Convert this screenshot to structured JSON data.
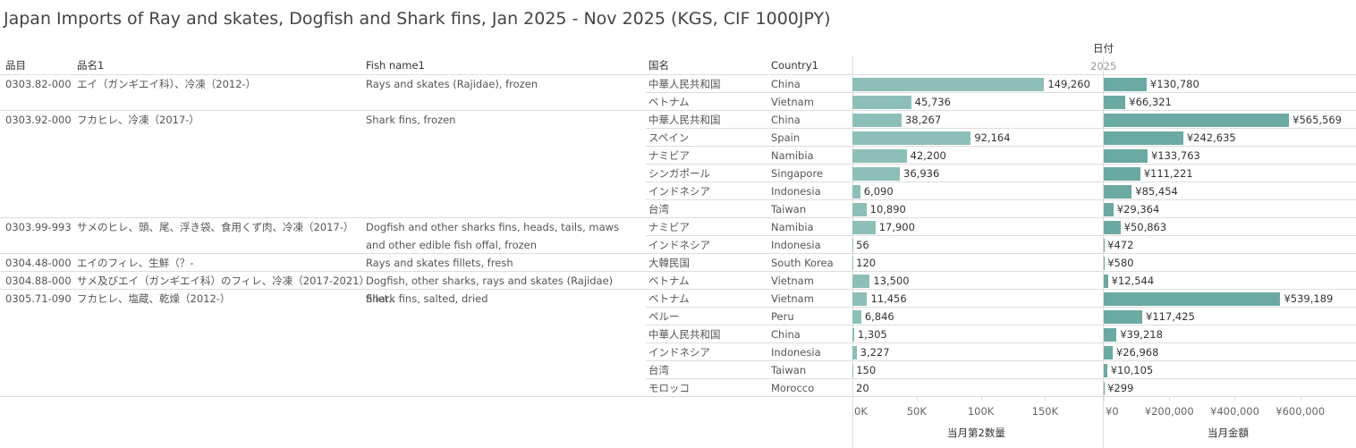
{
  "title": "Japan Imports of Ray and skates, Dogfish and Shark fins, Jan 2025 - Nov 2025 (KGS, CIF 1000JPY)",
  "headers": {
    "code": "品目",
    "name_ja": "品名1",
    "name_en": "Fish name1",
    "country_ja": "国名",
    "country_en": "Country1",
    "date": "日付",
    "year": "2025"
  },
  "quantity_axis": {
    "title": "当月第2数量",
    "color": "#8cbfb8",
    "xlim": [
      0,
      195000
    ],
    "xticks": [
      {
        "value": 0,
        "label": "0K"
      },
      {
        "value": 50000,
        "label": "50K"
      },
      {
        "value": 100000,
        "label": "100K"
      },
      {
        "value": 150000,
        "label": "150K"
      }
    ]
  },
  "amount_axis": {
    "title": "当月金額",
    "color": "#6aaaa2",
    "xlim": [
      0,
      770000
    ],
    "xticks": [
      {
        "value": 0,
        "label": "¥0"
      },
      {
        "value": 200000,
        "label": "¥200,000"
      },
      {
        "value": 400000,
        "label": "¥400,000"
      },
      {
        "value": 600000,
        "label": "¥600,000"
      }
    ]
  },
  "groups": [
    {
      "code": "0303.82-000",
      "name_ja": "エイ（ガンギエイ科）、冷凍（2012-）",
      "name_en": "Rays and skates (Rajidae), frozen",
      "rows": [
        {
          "country_ja": "中華人民共和国",
          "country_en": "China",
          "quantity": 149260,
          "quantity_label": "149,260",
          "amount": 130780,
          "amount_label": "¥130,780"
        },
        {
          "country_ja": "ベトナム",
          "country_en": "Vietnam",
          "quantity": 45736,
          "quantity_label": "45,736",
          "amount": 66321,
          "amount_label": "¥66,321"
        }
      ]
    },
    {
      "code": "0303.92-000",
      "name_ja": "フカヒレ、冷凍（2017-）",
      "name_en": "Shark fins, frozen",
      "rows": [
        {
          "country_ja": "中華人民共和国",
          "country_en": "China",
          "quantity": 38267,
          "quantity_label": "38,267",
          "amount": 565569,
          "amount_label": "¥565,569"
        },
        {
          "country_ja": "スペイン",
          "country_en": "Spain",
          "quantity": 92164,
          "quantity_label": "92,164",
          "amount": 242635,
          "amount_label": "¥242,635"
        },
        {
          "country_ja": "ナミビア",
          "country_en": "Namibia",
          "quantity": 42200,
          "quantity_label": "42,200",
          "amount": 133763,
          "amount_label": "¥133,763"
        },
        {
          "country_ja": "シンガポール",
          "country_en": "Singapore",
          "quantity": 36936,
          "quantity_label": "36,936",
          "amount": 111221,
          "amount_label": "¥111,221"
        },
        {
          "country_ja": "インドネシア",
          "country_en": "Indonesia",
          "quantity": 6090,
          "quantity_label": "6,090",
          "amount": 85454,
          "amount_label": "¥85,454"
        },
        {
          "country_ja": "台湾",
          "country_en": "Taiwan",
          "quantity": 10890,
          "quantity_label": "10,890",
          "amount": 29364,
          "amount_label": "¥29,364"
        }
      ]
    },
    {
      "code": "0303.99-993",
      "name_ja": "サメのヒレ、頭、尾、浮き袋、食用くず肉、冷凍（2017-）",
      "name_en": "Dogfish and other sharks fins, heads, tails, maws and other edible fish offal, frozen",
      "rows": [
        {
          "country_ja": "ナミビア",
          "country_en": "Namibia",
          "quantity": 17900,
          "quantity_label": "17,900",
          "amount": 50863,
          "amount_label": "¥50,863"
        },
        {
          "country_ja": "インドネシア",
          "country_en": "Indonesia",
          "quantity": 56,
          "amount": 472,
          "amount_label": "¥472"
        }
      ]
    },
    {
      "code": "0304.48-000",
      "name_ja": "エイのフィレ、生鮮（？-",
      "name_en": "Rays and skates fillets, fresh",
      "rows": [
        {
          "country_ja": "大韓民国",
          "country_en": "South Korea",
          "quantity": 120,
          "amount": 580,
          "amount_label": "¥580"
        }
      ]
    },
    {
      "code": "0304.88-000",
      "name_ja": "サメ及びエイ（ガンギエイ科）のフィレ、冷凍（2017-2021）",
      "name_en": "Dogfish, other sharks, rays and skates (Rajidae) fillet..",
      "rows": [
        {
          "country_ja": "ベトナム",
          "country_en": "Vietnam",
          "quantity": 13500,
          "quantity_label": "13,500",
          "amount": 12544,
          "amount_label": "¥12,544"
        }
      ]
    },
    {
      "code": "0305.71-090",
      "name_ja": "フカヒレ、塩蔵、乾燥（2012-）",
      "name_en": "Shark fins, salted, dried",
      "rows": [
        {
          "country_ja": "ベトナム",
          "country_en": "Vietnam",
          "quantity": 11456,
          "quantity_label": "11,456",
          "amount": 539189,
          "amount_label": "¥539,189"
        },
        {
          "country_ja": "ペルー",
          "country_en": "Peru",
          "quantity": 6846,
          "quantity_label": "6,846",
          "amount": 117425,
          "amount_label": "¥117,425"
        },
        {
          "country_ja": "中華人民共和国",
          "country_en": "China",
          "quantity": 1305,
          "quantity_label": "1,305",
          "amount": 39218,
          "amount_label": "¥39,218"
        },
        {
          "country_ja": "インドネシア",
          "country_en": "Indonesia",
          "quantity": 3227,
          "quantity_label": "3,227",
          "amount": 26968,
          "amount_label": "¥26,968"
        },
        {
          "country_ja": "台湾",
          "country_en": "Taiwan",
          "quantity": 150,
          "amount": 10105,
          "amount_label": "¥10,105"
        },
        {
          "country_ja": "モロッコ",
          "country_en": "Morocco",
          "quantity": 20,
          "amount": 299,
          "amount_label": "¥299"
        }
      ]
    }
  ]
}
